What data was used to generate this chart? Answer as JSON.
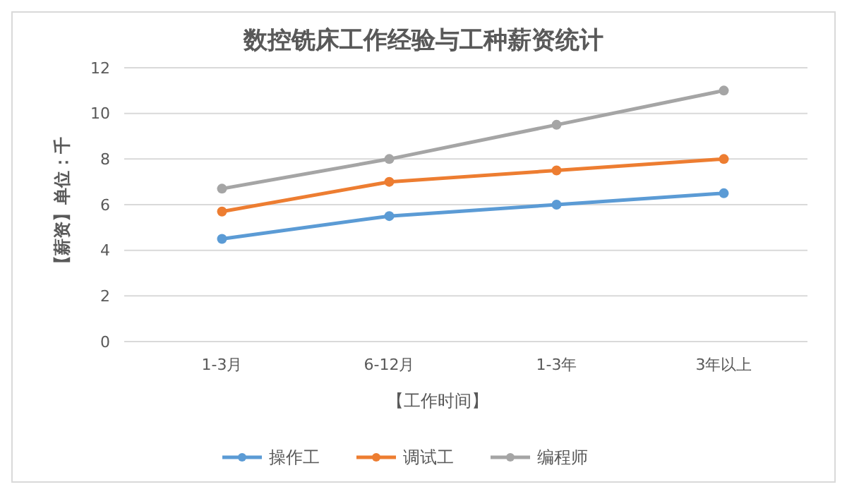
{
  "chart_data": {
    "type": "line",
    "title": "数控铣床工作经验与工种薪资统计",
    "xlabel": "【工作时间】",
    "ylabel": "【薪资】单位：千",
    "categories": [
      "1-3月",
      "6-12月",
      "1-3年",
      "3年以上"
    ],
    "series": [
      {
        "name": "操作工",
        "color": "#5b9bd5",
        "values": [
          4.5,
          5.5,
          6,
          6.5
        ]
      },
      {
        "name": "调试工",
        "color": "#ed7d31",
        "values": [
          5.7,
          7,
          7.5,
          8
        ]
      },
      {
        "name": "编程师",
        "color": "#a5a5a5",
        "values": [
          6.7,
          8,
          9.5,
          11
        ]
      }
    ],
    "ylim": [
      0,
      12
    ],
    "yticks": [
      0,
      2,
      4,
      6,
      8,
      10,
      12
    ],
    "grid": "y",
    "legend": "bottom",
    "marker": "circle",
    "line_style": "solid"
  }
}
